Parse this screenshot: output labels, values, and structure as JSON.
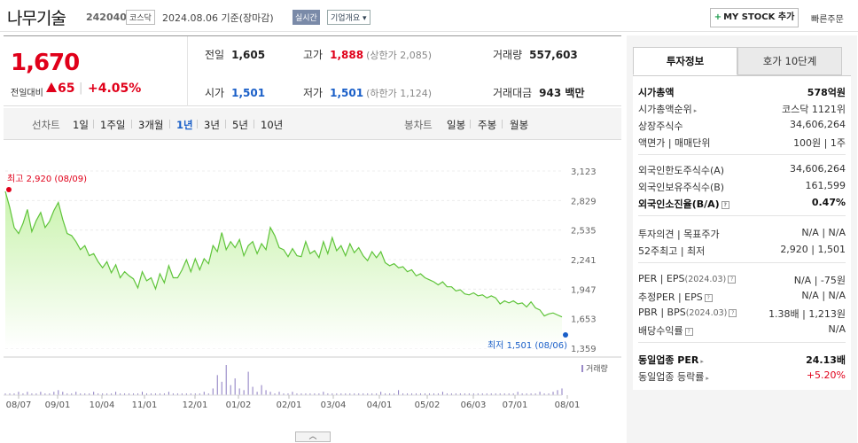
{
  "header": {
    "name": "나무기술",
    "code": "242040",
    "market": "코스닥",
    "base_date": "2024.08.06",
    "date_note": "기준(장마감)",
    "realtime": "실시간",
    "company_info": "기업개요",
    "mystock": "MY STOCK 추가",
    "quick_order": "빠른주문"
  },
  "price": {
    "current": "1,670",
    "change_label": "전일대비",
    "change_value": "65",
    "change_rate": "+4.05%",
    "prev_label": "전일",
    "prev": "1,605",
    "high_label": "고가",
    "high": "1,888",
    "upper_limit": "(상한가 2,085)",
    "volume_label": "거래량",
    "volume": "557,603",
    "open_label": "시가",
    "open": "1,501",
    "low_label": "저가",
    "low": "1,501",
    "lower_limit": "(하한가 1,124)",
    "amount_label": "거래대금",
    "amount": "943 백만"
  },
  "tabs": {
    "line_label": "선차트",
    "line": [
      "1일",
      "1주일",
      "3개월",
      "1년",
      "3년",
      "5년",
      "10년"
    ],
    "active": "1년",
    "candle_label": "봉차트",
    "candle": [
      "일봉",
      "주봉",
      "월봉"
    ]
  },
  "chart_data": {
    "type": "area",
    "period": "1년",
    "x_ticks": [
      "08/07",
      "09/01",
      "10/04",
      "11/01",
      "12/01",
      "01/02",
      "02/01",
      "03/04",
      "04/01",
      "05/02",
      "06/03",
      "07/01",
      "08/01"
    ],
    "y_ticks": [
      "3,123",
      "2,829",
      "2,535",
      "2,241",
      "1,947",
      "1,653",
      "1,359"
    ],
    "ylim": [
      1359,
      3123
    ],
    "high_label": "최고 2,920 (08/09)",
    "low_label": "최저 1,501 (08/06)",
    "volume_label": "거래량",
    "colors": {
      "line": "#5fc43a",
      "fill_top": "#c9f3ad",
      "fill_bottom": "#ffffff",
      "high": "#e0001a",
      "low": "#1a5fc8"
    },
    "series": [
      {
        "values": [
          2920,
          2760,
          2560,
          2500,
          2600,
          2740,
          2520,
          2630,
          2710,
          2560,
          2620,
          2730,
          2810,
          2640,
          2500,
          2480,
          2420,
          2340,
          2380,
          2280,
          2300,
          2220,
          2160,
          2220,
          2110,
          2190,
          2060,
          2120,
          2080,
          2050,
          1960,
          2120,
          2030,
          2060,
          1950,
          2100,
          2010,
          2180,
          2060,
          2060,
          2140,
          2240,
          2120,
          2250,
          2140,
          2250,
          2200,
          2380,
          2320,
          2510,
          2340,
          2420,
          2360,
          2440,
          2280,
          2380,
          2420,
          2300,
          2400,
          2340,
          2560,
          2480,
          2360,
          2340,
          2270,
          2350,
          2280,
          2270,
          2420,
          2300,
          2330,
          2260,
          2420,
          2300,
          2460,
          2330,
          2380,
          2280,
          2400,
          2310,
          2360,
          2280,
          2230,
          2320,
          2260,
          2320,
          2210,
          2180,
          2200,
          2160,
          2170,
          2120,
          2140,
          2080,
          2100,
          2060,
          2040,
          2020,
          1990,
          2020,
          1970,
          1970,
          1930,
          1940,
          1900,
          1890,
          1910,
          1880,
          1890,
          1860,
          1880,
          1860,
          1800,
          1830,
          1810,
          1830,
          1800,
          1810,
          1770,
          1820,
          1760,
          1740,
          1680,
          1700,
          1710,
          1690,
          1670
        ]
      }
    ],
    "volume": [
      1,
      1,
      1,
      2,
      1,
      2,
      1,
      1,
      2,
      1,
      1,
      2,
      3,
      2,
      1,
      1,
      2,
      1,
      1,
      1,
      2,
      1,
      1,
      1,
      1,
      2,
      1,
      1,
      1,
      1,
      1,
      2,
      1,
      1,
      1,
      1,
      1,
      2,
      1,
      1,
      1,
      1,
      1,
      1,
      1,
      2,
      1,
      4,
      12,
      8,
      18,
      6,
      10,
      4,
      3,
      14,
      5,
      2,
      6,
      3,
      2,
      1,
      2,
      1,
      1,
      2,
      1,
      1,
      1,
      1,
      1,
      1,
      2,
      1,
      1,
      1,
      1,
      1,
      1,
      1,
      1,
      1,
      1,
      1,
      1,
      2,
      1,
      1,
      1,
      3,
      1,
      1,
      1,
      1,
      1,
      1,
      1,
      1,
      1,
      2,
      1,
      1,
      1,
      1,
      1,
      1,
      1,
      1,
      1,
      1,
      1,
      1,
      1,
      1,
      1,
      1,
      2,
      1,
      1,
      1,
      1,
      2,
      1,
      1,
      2,
      3,
      4
    ]
  },
  "sidebar": {
    "tab_invest": "투자정보",
    "tab_orderbook": "호가 10단계",
    "rows1": [
      {
        "k": "시가총액",
        "v": "578억원",
        "bold": true
      },
      {
        "k": "시가총액순위",
        "v": "코스닥 1121위",
        "tri": true
      },
      {
        "k": "상장주식수",
        "v": "34,606,264"
      },
      {
        "k": "액면가 | 매매단위",
        "v": "100원 | 1주"
      }
    ],
    "rows2": [
      {
        "k": "외국인한도주식수(A)",
        "v": "34,606,264"
      },
      {
        "k": "외국인보유주식수(B)",
        "v": "161,599"
      },
      {
        "k": "외국인소진율(B/A)",
        "v": "0.47%",
        "bold": true,
        "q": true
      }
    ],
    "rows3": [
      {
        "k": "투자의견 | 목표주가",
        "v": "N/A | N/A"
      },
      {
        "k": "52주최고 | 최저",
        "v": "2,920 | 1,501"
      }
    ],
    "rows4": [
      {
        "k": "PER | EPS",
        "small": "(2024.03)",
        "v": "N/A | -75원",
        "q": true
      },
      {
        "k": "추정PER | EPS",
        "v": "N/A | N/A",
        "q": true
      },
      {
        "k": "PBR | BPS",
        "small": "(2024.03)",
        "v": "1.38배 | 1,213원",
        "q": true
      },
      {
        "k": "배당수익률",
        "v": "N/A",
        "q": true
      }
    ],
    "rows5": [
      {
        "k": "동일업종 PER",
        "v": "24.13배",
        "bold": true,
        "tri": true
      },
      {
        "k": "동일업종 등락률",
        "v": "+5.20%",
        "red": true,
        "tri": true
      }
    ]
  },
  "collapse_icon": "chevron-up-icon"
}
